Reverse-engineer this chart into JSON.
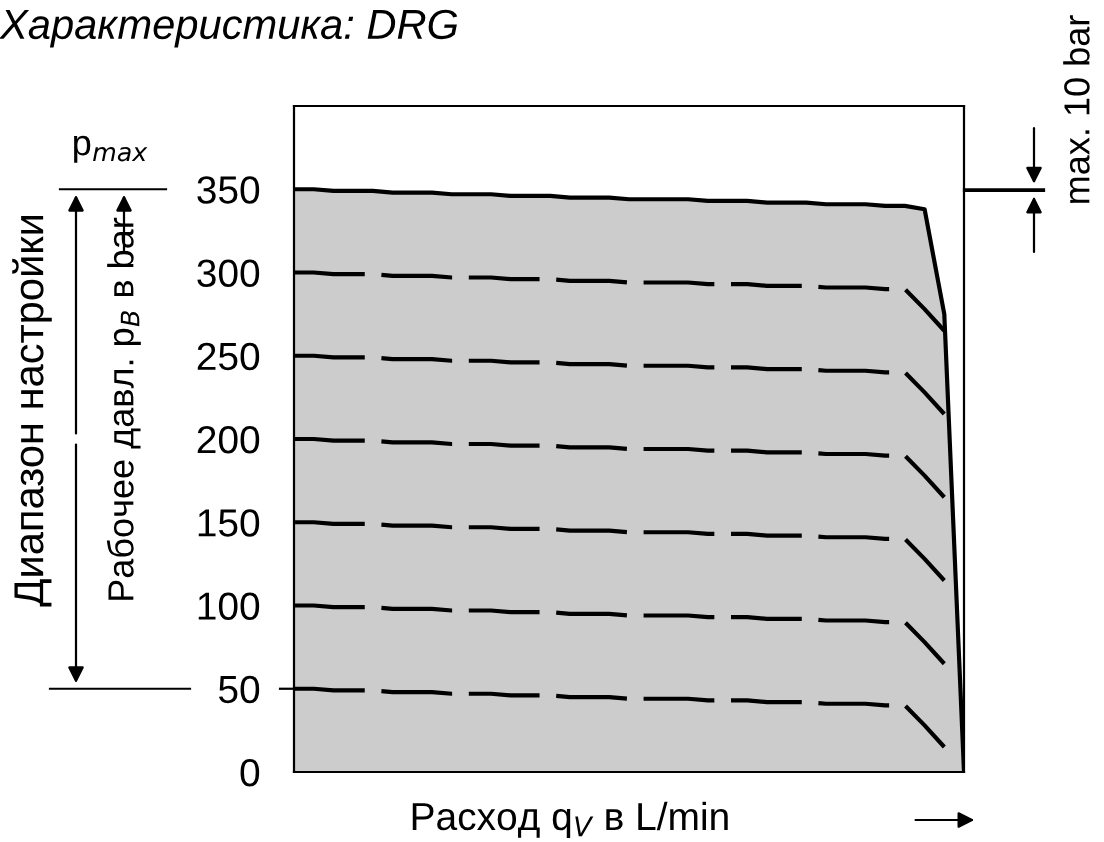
{
  "chart_data": {
    "type": "line",
    "title": "Характеристика: DRG",
    "xlabel": "Расход q$_{V}$ в L/min",
    "ylabel": "Рабочее давл. p$_{B}$ в bar",
    "categories": [
      null,
      null,
      null,
      null,
      null,
      null,
      null,
      null,
      null,
      null,
      null,
      null,
      null,
      null,
      null,
      null,
      null,
      null,
      null,
      null,
      null,
      null,
      null,
      null,
      null,
      null,
      null,
      null,
      null,
      null,
      null,
      null,
      null,
      null,
      null
    ],
    "ylim": [
      0,
      400
    ],
    "yticks": [
      0,
      50,
      100,
      150,
      200,
      250,
      300,
      350
    ],
    "grid": false,
    "legend": false,
    "annotations": [
      "p$_{max}$",
      "Диапазон настройки",
      "max. 10 bar"
    ],
    "series": [
      {
        "type": "area",
        "color": "#cccccc",
        "line_style": "solid",
        "values": [
          350,
          350,
          349,
          349,
          349,
          348,
          348,
          348,
          347,
          347,
          347,
          346,
          346,
          346,
          345,
          345,
          345,
          344,
          344,
          344,
          344,
          343,
          343,
          343,
          342,
          342,
          342,
          341,
          341,
          341,
          340,
          340,
          338,
          275,
          0
        ]
      },
      {
        "type": "line",
        "color": "#000000",
        "line_style": "dashed",
        "values": [
          300,
          300,
          299,
          299,
          299,
          298,
          298,
          298,
          297,
          297,
          297,
          296,
          296,
          296,
          295,
          295,
          295,
          294,
          294,
          294,
          294,
          293,
          293,
          293,
          292,
          292,
          292,
          291,
          291,
          291,
          290,
          290,
          278,
          265,
          null
        ]
      },
      {
        "type": "line",
        "color": "#000000",
        "line_style": "dashed",
        "values": [
          250,
          250,
          249,
          249,
          249,
          248,
          248,
          248,
          247,
          247,
          247,
          246,
          246,
          246,
          245,
          245,
          245,
          244,
          244,
          244,
          244,
          243,
          243,
          243,
          242,
          242,
          242,
          241,
          241,
          241,
          240,
          240,
          228,
          215,
          null
        ]
      },
      {
        "type": "line",
        "color": "#000000",
        "line_style": "dashed",
        "values": [
          200,
          200,
          199,
          199,
          199,
          198,
          198,
          198,
          197,
          197,
          197,
          196,
          196,
          196,
          195,
          195,
          195,
          194,
          194,
          194,
          194,
          193,
          193,
          193,
          192,
          192,
          192,
          191,
          191,
          191,
          190,
          190,
          178,
          165,
          null
        ]
      },
      {
        "type": "line",
        "color": "#000000",
        "line_style": "dashed",
        "values": [
          150,
          150,
          149,
          149,
          149,
          148,
          148,
          148,
          147,
          147,
          147,
          146,
          146,
          146,
          145,
          145,
          145,
          144,
          144,
          144,
          144,
          143,
          143,
          143,
          142,
          142,
          142,
          141,
          141,
          141,
          140,
          140,
          128,
          115,
          null
        ]
      },
      {
        "type": "line",
        "color": "#000000",
        "line_style": "dashed",
        "values": [
          100,
          100,
          99,
          99,
          99,
          98,
          98,
          98,
          97,
          97,
          97,
          96,
          96,
          96,
          95,
          95,
          95,
          94,
          94,
          94,
          94,
          93,
          93,
          93,
          92,
          92,
          92,
          91,
          91,
          91,
          90,
          90,
          78,
          65,
          null
        ]
      },
      {
        "type": "line",
        "color": "#000000",
        "line_style": "dashed",
        "values": [
          50,
          50,
          49,
          49,
          49,
          48,
          48,
          48,
          47,
          47,
          47,
          46,
          46,
          46,
          45,
          45,
          45,
          44,
          44,
          44,
          44,
          43,
          43,
          43,
          42,
          42,
          42,
          41,
          41,
          41,
          40,
          40,
          28,
          15,
          null
        ]
      }
    ]
  }
}
